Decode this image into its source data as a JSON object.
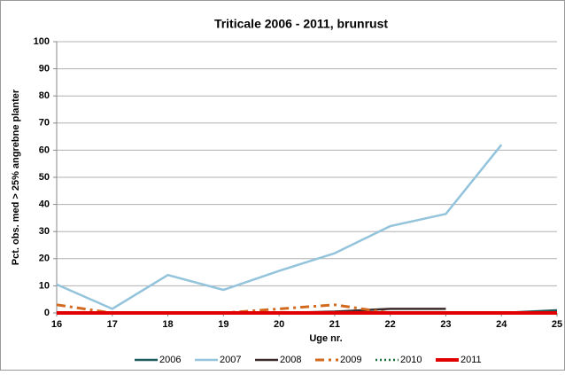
{
  "chart_data": {
    "type": "line",
    "title": "Triticale 2006 - 2011, brunrust",
    "x_label": "Uge nr.",
    "y_label": "Pct. obs. med > 25% angrebne planter",
    "x": [
      16,
      17,
      18,
      19,
      20,
      21,
      22,
      23,
      24,
      25
    ],
    "xlim": [
      16,
      25
    ],
    "xticks": [
      16,
      17,
      18,
      19,
      20,
      21,
      22,
      23,
      24,
      25
    ],
    "ylim": [
      0,
      100
    ],
    "yticks": [
      0,
      10,
      20,
      30,
      40,
      50,
      60,
      70,
      80,
      90,
      100
    ],
    "grid": true,
    "legend": "bottom",
    "series": [
      {
        "name": "2006",
        "color": "#1e5c5c",
        "style": "solid",
        "values": [
          0,
          0,
          0,
          0,
          0,
          0,
          0,
          0,
          0,
          1
        ]
      },
      {
        "name": "2007",
        "color": "#93c4dc",
        "style": "solid",
        "values": [
          10.5,
          1.5,
          14,
          8.5,
          15.5,
          22,
          32,
          36.5,
          62,
          null
        ]
      },
      {
        "name": "2008",
        "color": "#3a2a2a",
        "style": "solid",
        "values": [
          0,
          0,
          0,
          0,
          0,
          0.5,
          1.5,
          1.5,
          null,
          null
        ]
      },
      {
        "name": "2009",
        "color": "#d2691e",
        "style": "dash-dot",
        "values": [
          3,
          0,
          0,
          0,
          1.5,
          3,
          0,
          0,
          0,
          null
        ]
      },
      {
        "name": "2010",
        "color": "#1a6e3a",
        "style": "dotted",
        "values": [
          0,
          0,
          0,
          0,
          0,
          0,
          0,
          0,
          0,
          0
        ]
      },
      {
        "name": "2011",
        "color": "#e00000",
        "style": "thick",
        "values": [
          0,
          0,
          0,
          0,
          0,
          0,
          0,
          0,
          0,
          0
        ]
      }
    ]
  }
}
